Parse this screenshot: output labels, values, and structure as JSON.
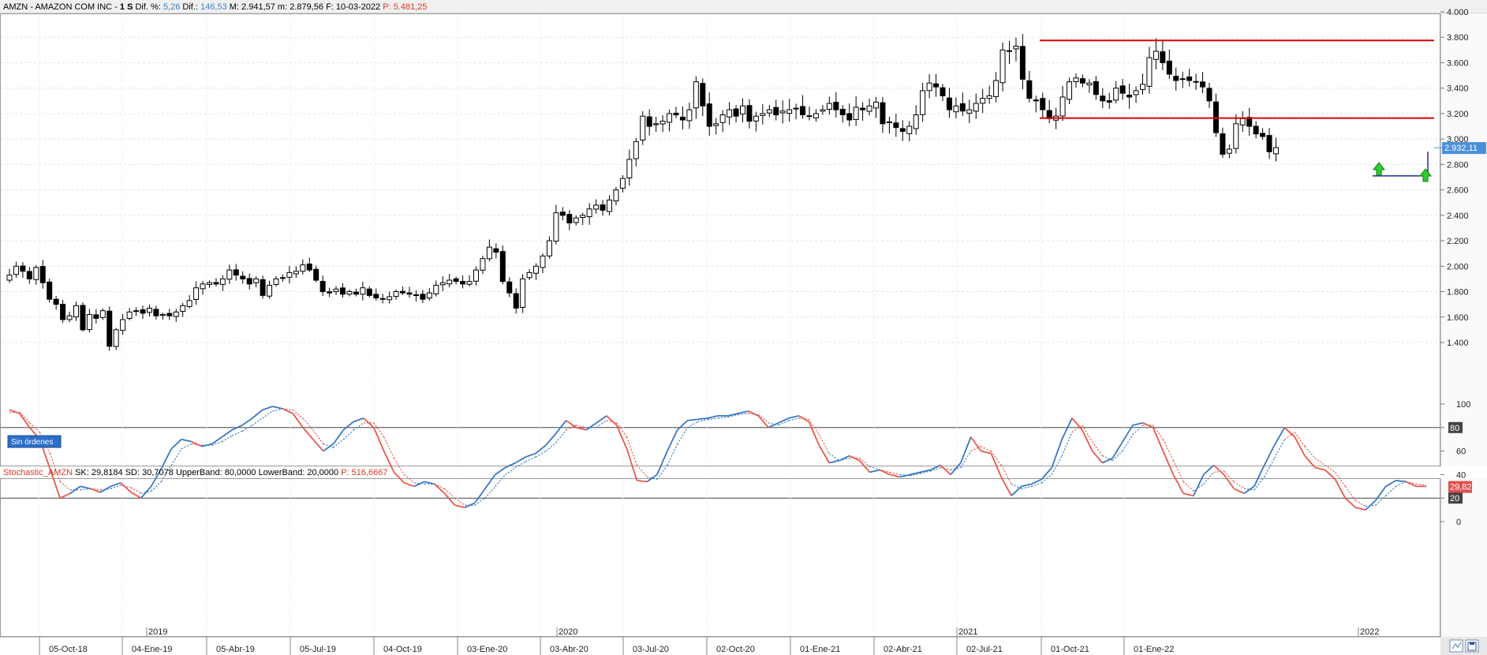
{
  "header": {
    "symbol": "AMZN - AMAZON COM INC -",
    "period": "1 S",
    "dif_pct_label": "Dif. %:",
    "dif_pct_value": "5,26",
    "dif_label": "Dif.:",
    "dif_value": "146,53",
    "max_label": "M: 2.941,57",
    "min_label": "m: 2.879,56",
    "date_label": "F: 10-03-2022",
    "price_label": "P: 5.481,25"
  },
  "price_tag": "2.932,11",
  "orders_button": "Sin órdenes",
  "indicator_header": {
    "name": "Stochastic_AMZN",
    "sk_label": "SK:",
    "sk_value": "29,8184",
    "sd_label": "SD:",
    "sd_value": "30,7078",
    "upper_label": "UpperBand:",
    "upper_value": "80,0000",
    "lower_label": "LowerBand:",
    "lower_value": "20,0000",
    "p_label": "P: 516,6667"
  },
  "stoch_tag": "29,82",
  "band_tags": {
    "upper": "80",
    "lower": "20"
  },
  "colors": {
    "header_name": "#d93a2b",
    "header_value": "#3b7fd0",
    "resistance": "#e00000",
    "support": "#1a2aa0",
    "arrow": "#2ecc2e",
    "sk_line": "#e8584a",
    "sd_line": "#3a78c2",
    "price_tag_bg": "#4a90d9",
    "stoch_tag_bg": "#e05050"
  },
  "chart_data": [
    {
      "type": "candlestick",
      "symbol": "AMZN",
      "interval": "weekly",
      "ylim": [
        1250,
        4000
      ],
      "y_ticks": [
        1400,
        1600,
        1800,
        2000,
        2200,
        2400,
        2600,
        2800,
        3000,
        3200,
        3400,
        3600,
        3800,
        4000
      ],
      "y_tick_labels": [
        "1.400",
        "1.600",
        "1.800",
        "2.000",
        "2.200",
        "2.400",
        "2.600",
        "2.800",
        "3.000",
        "3.200",
        "3.400",
        "3.600",
        "3.800",
        "4.000"
      ],
      "x_tick_labels": [
        "05-Oct-18",
        "04-Ene-19",
        "05-Abr-19",
        "05-Jul-19",
        "04-Oct-19",
        "03-Ene-20",
        "03-Abr-20",
        "03-Jul-20",
        "02-Oct-20",
        "01-Ene-21",
        "02-Abr-21",
        "02-Jul-21",
        "01-Oct-21",
        "01-Ene-22"
      ],
      "year_labels": [
        "2019",
        "2020",
        "2021",
        "2022"
      ],
      "close_path": [
        1930,
        2000,
        1960,
        1900,
        1990,
        1870,
        1740,
        1700,
        1580,
        1610,
        1690,
        1500,
        1620,
        1590,
        1650,
        1370,
        1500,
        1580,
        1640,
        1650,
        1630,
        1670,
        1610,
        1620,
        1610,
        1640,
        1690,
        1730,
        1830,
        1860,
        1870,
        1860,
        1900,
        1970,
        1930,
        1900,
        1860,
        1900,
        1770,
        1850,
        1900,
        1910,
        1950,
        1960,
        2010,
        1970,
        1890,
        1800,
        1790,
        1820,
        1780,
        1800,
        1780,
        1830,
        1770,
        1750,
        1740,
        1760,
        1800,
        1790,
        1780,
        1770,
        1740,
        1790,
        1850,
        1870,
        1890,
        1880,
        1860,
        1880,
        1970,
        2060,
        2150,
        2110,
        1880,
        1790,
        1670,
        1900,
        1950,
        2000,
        2080,
        2200,
        2420,
        2400,
        2340,
        2380,
        2400,
        2450,
        2480,
        2440,
        2520,
        2600,
        2690,
        2840,
        2980,
        3180,
        3100,
        3120,
        3140,
        3200,
        3190,
        3150,
        3230,
        3450,
        3260,
        3100,
        3120,
        3190,
        3230,
        3180,
        3260,
        3140,
        3180,
        3200,
        3230,
        3190,
        3220,
        3230,
        3240,
        3190,
        3180,
        3200,
        3230,
        3280,
        3230,
        3190,
        3150,
        3250,
        3230,
        3260,
        3290,
        3120,
        3130,
        3090,
        3060,
        3100,
        3190,
        3380,
        3440,
        3410,
        3340,
        3230,
        3260,
        3220,
        3230,
        3280,
        3320,
        3340,
        3460,
        3700,
        3690,
        3730,
        3470,
        3320,
        3300,
        3230,
        3160,
        3180,
        3330,
        3450,
        3480,
        3440,
        3440,
        3350,
        3300,
        3290,
        3400,
        3360,
        3330,
        3380,
        3430,
        3640,
        3690,
        3600,
        3510,
        3460,
        3470,
        3460,
        3450,
        3410,
        3300,
        3050,
        2880,
        2920,
        3120,
        3160,
        3100,
        3040,
        3020,
        2900,
        2932
      ],
      "resistance_levels": [
        3775,
        3165
      ],
      "support_level": 2710,
      "last_price": 2932.11
    },
    {
      "type": "line",
      "name": "Stochastic_AMZN",
      "ylim": [
        0,
        100
      ],
      "y_ticks": [
        0,
        20,
        40,
        60,
        80,
        100
      ],
      "bands": [
        80,
        20
      ],
      "series": [
        {
          "name": "SK",
          "values": [
            95,
            92,
            80,
            70,
            45,
            20,
            24,
            30,
            28,
            25,
            30,
            33,
            25,
            20,
            30,
            45,
            62,
            70,
            68,
            64,
            66,
            72,
            78,
            82,
            88,
            95,
            98,
            96,
            92,
            80,
            70,
            60,
            66,
            78,
            85,
            88,
            80,
            60,
            42,
            33,
            30,
            34,
            32,
            24,
            14,
            12,
            16,
            28,
            40,
            46,
            50,
            55,
            58,
            65,
            75,
            86,
            80,
            78,
            84,
            90,
            82,
            62,
            35,
            34,
            40,
            60,
            78,
            86,
            87,
            88,
            90,
            90,
            92,
            94,
            90,
            80,
            84,
            88,
            90,
            85,
            65,
            50,
            52,
            56,
            52,
            42,
            44,
            40,
            38,
            40,
            42,
            44,
            48,
            40,
            50,
            72,
            60,
            58,
            38,
            22,
            30,
            32,
            36,
            46,
            70,
            88,
            78,
            60,
            50,
            54,
            68,
            82,
            84,
            80,
            60,
            40,
            24,
            22,
            40,
            48,
            40,
            28,
            24,
            30,
            48,
            65,
            80,
            72,
            56,
            46,
            44,
            36,
            20,
            12,
            10,
            18,
            30,
            35,
            34,
            30,
            30
          ]
        },
        {
          "name": "SD",
          "values": [
            93,
            93,
            84,
            76,
            58,
            34,
            27,
            27,
            28,
            27,
            28,
            31,
            29,
            24,
            26,
            34,
            48,
            62,
            66,
            65,
            65,
            68,
            73,
            77,
            82,
            88,
            94,
            96,
            95,
            88,
            78,
            66,
            63,
            70,
            78,
            84,
            84,
            72,
            54,
            40,
            33,
            32,
            32,
            28,
            20,
            14,
            14,
            20,
            30,
            40,
            46,
            51,
            55,
            60,
            67,
            78,
            82,
            80,
            80,
            86,
            84,
            72,
            48,
            38,
            36,
            48,
            66,
            80,
            85,
            87,
            88,
            89,
            91,
            92,
            91,
            84,
            82,
            86,
            88,
            87,
            74,
            58,
            52,
            54,
            54,
            47,
            44,
            42,
            40,
            39,
            41,
            43,
            46,
            44,
            46,
            60,
            64,
            60,
            48,
            32,
            28,
            30,
            33,
            40,
            56,
            76,
            82,
            68,
            56,
            52,
            60,
            74,
            82,
            82,
            70,
            52,
            34,
            26,
            32,
            42,
            43,
            34,
            28,
            27,
            38,
            54,
            70,
            76,
            64,
            54,
            48,
            42,
            30,
            18,
            13,
            14,
            22,
            30,
            34,
            32,
            31
          ]
        }
      ],
      "last_sk": 29.8184,
      "last_sd": 30.7078
    }
  ]
}
